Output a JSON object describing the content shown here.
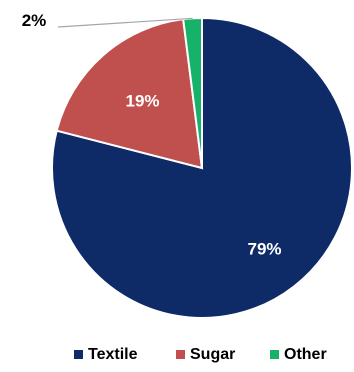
{
  "chart_data": {
    "type": "pie",
    "categories": [
      "Textile",
      "Sugar",
      "Other"
    ],
    "values": [
      79,
      19,
      2
    ],
    "labels": [
      "79%",
      "19%",
      "2%"
    ],
    "colors": [
      "#0e2a67",
      "#c0504d",
      "#17b26a"
    ],
    "label_colors": [
      "#ffffff",
      "#ffffff",
      "#000000"
    ],
    "legend_position": "bottom"
  }
}
